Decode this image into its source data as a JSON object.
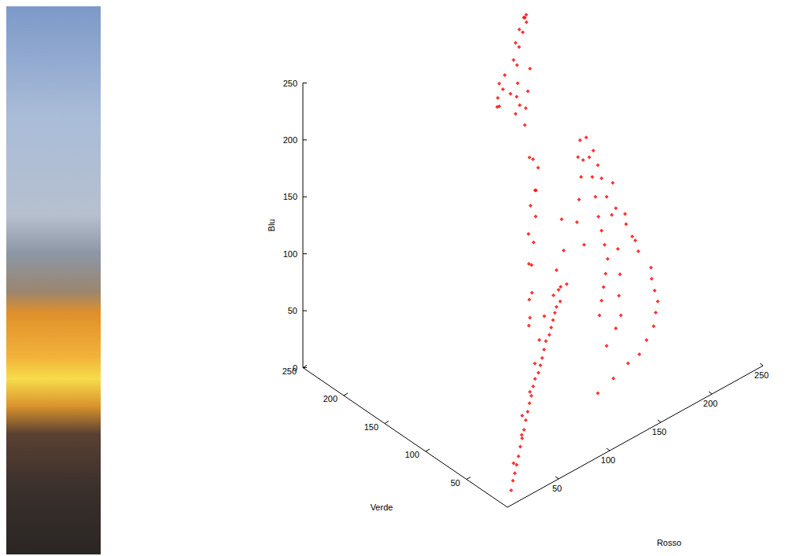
{
  "chart_data": {
    "type": "scatter3d",
    "xlabel": "Rosso",
    "ylabel": "Verde",
    "zlabel": "Blu",
    "color": "#ff0000",
    "marker": "diamond",
    "grid": false,
    "xlim": [
      0,
      250
    ],
    "ylim": [
      0,
      250
    ],
    "zlim": [
      0,
      250
    ],
    "xticks": [
      50,
      100,
      150,
      200,
      250
    ],
    "yticks": [
      50,
      100,
      150,
      200,
      250
    ],
    "zticks": [
      0,
      50,
      100,
      150,
      200,
      250
    ],
    "x": [
      10,
      15,
      20,
      25,
      30,
      35,
      40,
      45,
      50,
      55,
      60,
      65,
      70,
      75,
      80,
      85,
      90,
      95,
      100,
      105,
      110,
      115,
      120,
      130,
      22,
      38,
      48,
      62,
      78,
      92,
      108,
      125,
      140,
      150,
      252,
      250,
      248,
      245,
      250,
      252,
      250,
      248,
      250,
      245,
      240,
      235,
      225,
      215,
      200,
      185,
      170,
      150,
      130,
      240,
      235,
      230,
      225,
      220,
      215,
      210,
      200,
      190,
      180,
      170,
      255,
      255,
      253,
      230,
      220,
      210,
      200,
      195,
      238,
      228,
      218,
      205,
      195,
      182,
      165,
      245,
      235,
      225,
      160,
      150,
      140,
      175,
      185,
      90,
      100,
      110,
      120,
      130,
      140,
      135,
      125,
      115,
      105,
      95,
      85,
      150,
      145,
      140,
      145,
      150,
      140,
      135,
      130,
      128,
      135,
      150,
      160,
      170,
      180,
      185,
      188,
      185,
      175,
      165,
      155,
      150,
      145,
      140,
      160,
      170,
      125,
      128,
      122
    ],
    "y": [
      8,
      12,
      16,
      20,
      24,
      28,
      32,
      36,
      40,
      44,
      48,
      52,
      56,
      60,
      62,
      66,
      70,
      74,
      78,
      80,
      84,
      88,
      92,
      98,
      20,
      30,
      42,
      50,
      64,
      76,
      90,
      100,
      110,
      115,
      210,
      202,
      195,
      185,
      180,
      170,
      160,
      150,
      137,
      130,
      120,
      110,
      100,
      90,
      80,
      70,
      65,
      58,
      52,
      200,
      190,
      180,
      170,
      160,
      150,
      140,
      130,
      120,
      110,
      100,
      190,
      175,
      160,
      195,
      185,
      175,
      165,
      150,
      170,
      150,
      135,
      120,
      105,
      95,
      85,
      210,
      205,
      195,
      140,
      125,
      115,
      150,
      165,
      85,
      95,
      108,
      118,
      128,
      140,
      135,
      128,
      118,
      105,
      92,
      80,
      150,
      150,
      148,
      160,
      165,
      160,
      165,
      168,
      170,
      172,
      180,
      190,
      198,
      205,
      208,
      212,
      210,
      200,
      192,
      182,
      175,
      170,
      165,
      175,
      185,
      168,
      170,
      165
    ],
    "z": [
      6,
      10,
      12,
      15,
      18,
      22,
      25,
      28,
      32,
      35,
      38,
      40,
      44,
      46,
      48,
      50,
      52,
      55,
      58,
      60,
      62,
      64,
      66,
      68,
      18,
      30,
      36,
      46,
      56,
      64,
      70,
      75,
      70,
      65,
      85,
      77,
      70,
      60,
      50,
      40,
      35,
      28,
      19,
      15,
      12,
      10,
      10,
      8,
      8,
      8,
      10,
      10,
      10,
      90,
      80,
      70,
      60,
      55,
      50,
      45,
      42,
      40,
      38,
      35,
      65,
      45,
      30,
      95,
      90,
      80,
      70,
      60,
      55,
      40,
      30,
      25,
      20,
      20,
      18,
      100,
      105,
      100,
      60,
      55,
      50,
      65,
      80,
      80,
      92,
      105,
      115,
      128,
      140,
      145,
      140,
      125,
      110,
      90,
      78,
      150,
      160,
      165,
      185,
      195,
      205,
      215,
      220,
      225,
      228,
      230,
      235,
      238,
      240,
      232,
      235,
      235,
      232,
      228,
      222,
      212,
      205,
      195,
      200,
      210,
      215,
      205,
      210
    ]
  }
}
